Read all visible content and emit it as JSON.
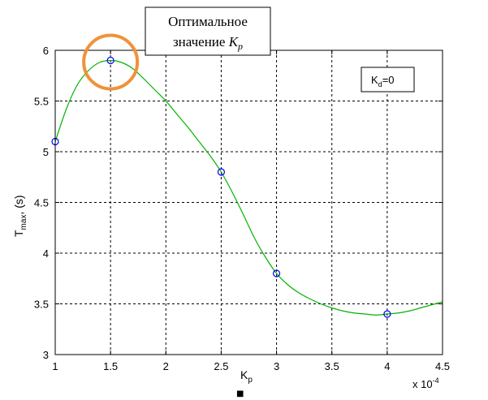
{
  "chart_data": {
    "type": "line",
    "title": "",
    "xlabel": "K",
    "xlabel_sub": "p",
    "xlabel_marker": "■",
    "x_multiplier": "x 10",
    "x_multiplier_exp": "-4",
    "ylabel": "T",
    "ylabel_sub": "max",
    "ylabel_suffix": ", (s)",
    "xlim": [
      1,
      4.5
    ],
    "ylim": [
      3,
      6
    ],
    "grid": true,
    "x_ticks": [
      1,
      1.5,
      2,
      2.5,
      3,
      3.5,
      4,
      4.5
    ],
    "x_tick_labels": [
      "1",
      "1.5",
      "2",
      "2.5",
      "3",
      "3.5",
      "4",
      "4.5"
    ],
    "y_ticks": [
      3,
      3.5,
      4,
      4.5,
      5,
      5.5,
      6
    ],
    "y_tick_labels": [
      "3",
      "3.5",
      "4",
      "4.5",
      "5",
      "5.5",
      "6"
    ],
    "series": [
      {
        "kind": "points",
        "color": "#0000ff",
        "x": [
          1,
          1.5,
          2.5,
          3,
          4
        ],
        "y": [
          5.1,
          5.9,
          4.8,
          3.8,
          3.4
        ]
      },
      {
        "kind": "fit-curve",
        "color": "#00b400",
        "x": [
          1.0,
          1.1,
          1.2,
          1.3,
          1.4,
          1.5,
          1.6,
          1.7,
          1.8,
          1.9,
          2.0,
          2.1,
          2.2,
          2.3,
          2.4,
          2.5,
          2.6,
          2.7,
          2.8,
          2.9,
          3.0,
          3.1,
          3.2,
          3.3,
          3.4,
          3.5,
          3.6,
          3.7,
          3.8,
          3.9,
          4.0,
          4.1,
          4.2,
          4.3,
          4.4,
          4.5
        ],
        "y": [
          5.1,
          5.42,
          5.66,
          5.8,
          5.88,
          5.9,
          5.88,
          5.82,
          5.72,
          5.61,
          5.5,
          5.37,
          5.24,
          5.1,
          4.96,
          4.8,
          4.6,
          4.38,
          4.15,
          3.96,
          3.8,
          3.69,
          3.61,
          3.55,
          3.5,
          3.46,
          3.43,
          3.41,
          3.4,
          3.39,
          3.4,
          3.41,
          3.43,
          3.46,
          3.49,
          3.52
        ]
      }
    ],
    "legend": {
      "text": "K",
      "sub": "d",
      "suffix": "=0",
      "placement": "top-right"
    },
    "annotation": {
      "line1": "Оптимальное",
      "line2": "значение",
      "var": "K",
      "var_sub": "p",
      "highlight_point": [
        1.5,
        5.9
      ],
      "highlight_color": "#f0923a"
    }
  }
}
